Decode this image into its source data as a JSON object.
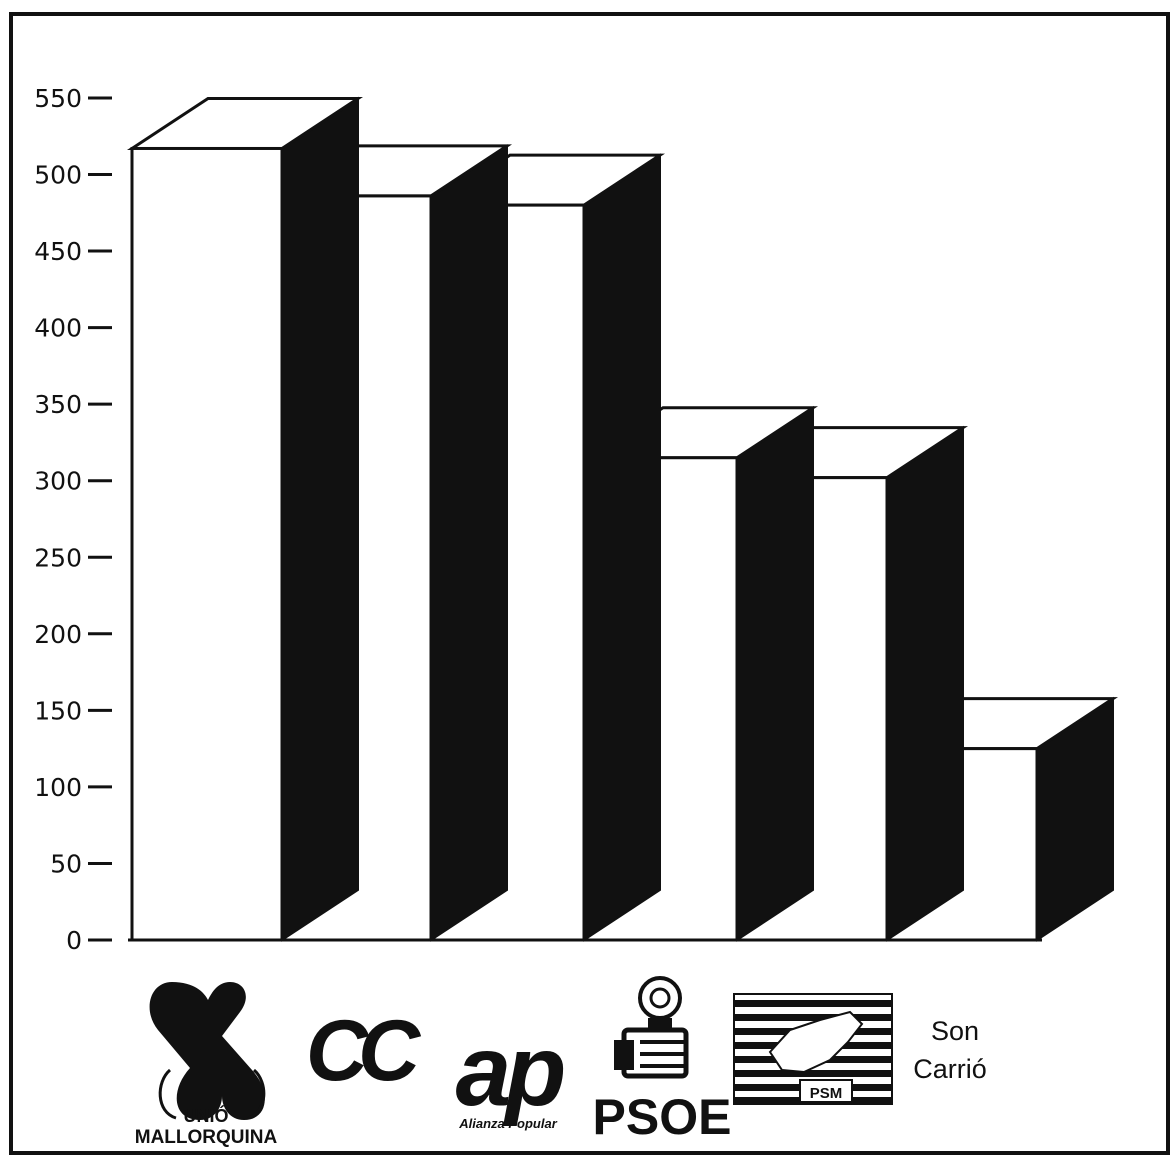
{
  "chart_data": {
    "type": "bar",
    "title": "",
    "xlabel": "",
    "ylabel": "",
    "ylim": [
      0,
      550
    ],
    "yticks": [
      0,
      50,
      100,
      150,
      200,
      250,
      300,
      350,
      400,
      450,
      500,
      550
    ],
    "grid": false,
    "legend": "none",
    "bar_style": "3d",
    "categories": [
      "UNIÓ MALLORQUINA",
      "CC",
      "ap Alianza Popular",
      "PSOE",
      "PSM",
      "Son Carrió"
    ],
    "values": [
      517,
      486,
      480,
      315,
      302,
      125
    ]
  },
  "logos": {
    "um": {
      "line1": "UNIÓ",
      "line2": "MALLORQUINA"
    },
    "cc": {
      "mark": "CC"
    },
    "ap": {
      "mark": "ap",
      "sub": "Alianza Popular"
    },
    "psoe": {
      "text": "PSOE"
    },
    "psm": {
      "text": "PSM"
    },
    "son_carrio": {
      "line1": "Son",
      "line2": "Carrió"
    }
  },
  "colors": {
    "ink": "#111111",
    "paper": "#ffffff"
  }
}
